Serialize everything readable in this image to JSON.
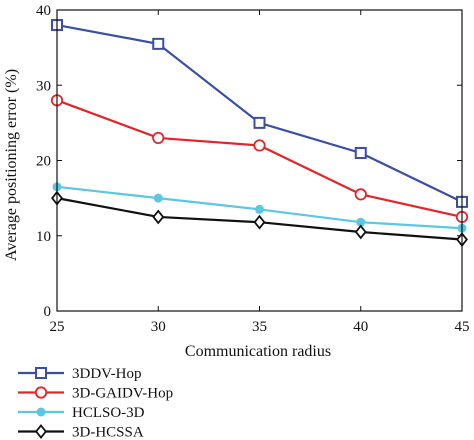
{
  "chart_data": {
    "type": "line",
    "xlabel": "Communication radius",
    "ylabel": "Average positioning error (%)",
    "x": [
      25,
      30,
      35,
      40,
      45
    ],
    "xlim": [
      25,
      45
    ],
    "ylim": [
      0,
      40
    ],
    "xticks": [
      "25",
      "30",
      "35",
      "40",
      "45"
    ],
    "yticks": [
      "0",
      "10",
      "20",
      "30",
      "40"
    ],
    "grid": false,
    "legend_position": "bottom-left",
    "series": [
      {
        "name": "3DDV-Hop",
        "values": [
          38,
          35.5,
          25,
          21,
          14.5
        ],
        "color": "#3a4fa3",
        "marker": "square"
      },
      {
        "name": "3D-GAIDV-Hop",
        "values": [
          28,
          23,
          22,
          15.5,
          12.5
        ],
        "color": "#e0262a",
        "marker": "circle"
      },
      {
        "name": "HCLSO-3D",
        "values": [
          16.5,
          15,
          13.5,
          11.8,
          11
        ],
        "color": "#5bc7e0",
        "marker": "filled-circle"
      },
      {
        "name": "3D-HCSSA",
        "values": [
          15,
          12.5,
          11.8,
          10.5,
          9.5
        ],
        "color": "#111111",
        "marker": "diamond"
      }
    ]
  }
}
